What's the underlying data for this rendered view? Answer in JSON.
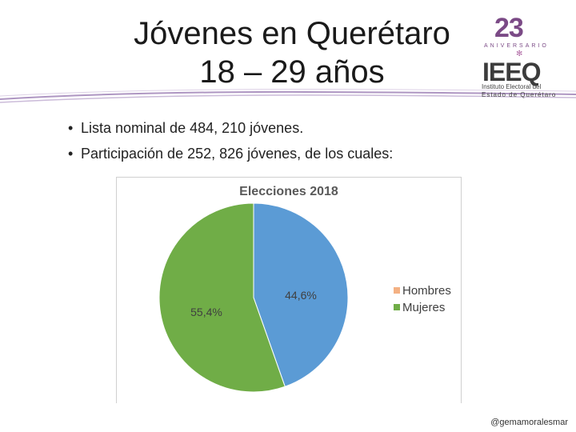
{
  "slide": {
    "title_line1": "Jóvenes en Querétaro",
    "title_line2": "18 – 29 años",
    "bullets": [
      "Lista nominal de 484, 210 jóvenes.",
      "Participación de 252, 826 jóvenes, de los cuales:"
    ],
    "footer_handle": "@gemamoralesmar"
  },
  "logo": {
    "number": "23",
    "subtitle": "ANIVERSARIO",
    "acronym": "IEEQ",
    "line1": "Instituto Electoral del",
    "line2": "Estado de Querétaro"
  },
  "colors": {
    "hombres": "#5b9bd5",
    "mujeres": "#70ad47",
    "legend_hombres": "#f4b183",
    "swoosh": "#8c6aa8"
  },
  "chart_data": {
    "type": "pie",
    "title": "Elecciones 2018",
    "labels": [
      "Hombres",
      "Mujeres"
    ],
    "values": [
      44.6,
      55.4
    ],
    "value_labels": [
      "44,6%",
      "55,4%"
    ],
    "legend_position": "right"
  }
}
